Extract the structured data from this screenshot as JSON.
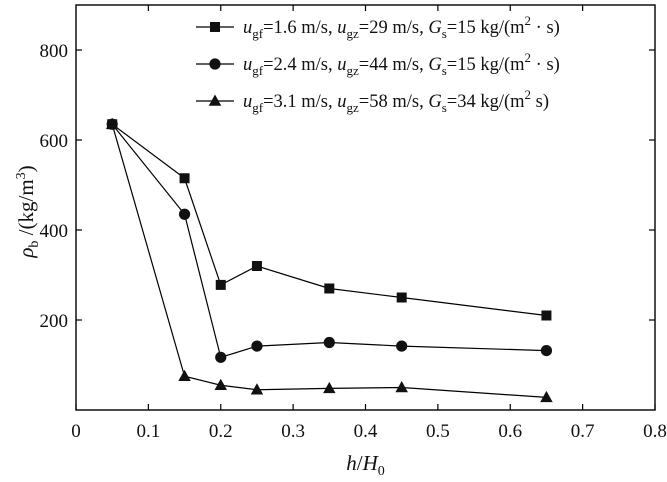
{
  "chart_data": {
    "type": "line",
    "xlabel_parts": {
      "italic": "h",
      "mid": "/",
      "italic2": "H",
      "sub": "0"
    },
    "ylabel_parts": {
      "greek": "ρ",
      "sub": "b",
      "tail": " /(kg/m",
      "sup": "3",
      "close": ")"
    },
    "xlim": [
      0,
      0.8
    ],
    "ylim": [
      0,
      900
    ],
    "xticks": [
      0,
      0.1,
      0.2,
      0.3,
      0.4,
      0.5,
      0.6,
      0.7,
      0.8
    ],
    "xtick_labels": [
      "0",
      "0.1",
      "0.2",
      "0.3",
      "0.4",
      "0.5",
      "0.6",
      "0.7",
      "0.8"
    ],
    "yticks": [
      200,
      400,
      600,
      800
    ],
    "ytick_labels": [
      "200",
      "400",
      "600",
      "800"
    ],
    "x": [
      0.05,
      0.15,
      0.2,
      0.25,
      0.35,
      0.45,
      0.65
    ],
    "legend_position": "top-right",
    "series": [
      {
        "marker": "square",
        "legend": {
          "ugf": "1.6",
          "ugz": "29",
          "gs": "15"
        },
        "values": [
          635,
          515,
          278,
          320,
          270,
          250,
          210
        ]
      },
      {
        "marker": "circle",
        "legend": {
          "ugf": "2.4",
          "ugz": "44",
          "gs": "15"
        },
        "values": [
          635,
          435,
          117,
          142,
          150,
          142,
          132
        ]
      },
      {
        "marker": "triangle",
        "legend": {
          "ugf": "3.1",
          "ugz": "58",
          "gs": "34"
        },
        "values": [
          635,
          75,
          55,
          45,
          48,
          50,
          28
        ]
      }
    ],
    "legend_text": {
      "u": "u",
      "sub_gf": "gf",
      "sub_gz": "gz",
      "g": "G",
      "sub_s": "s",
      "eq": "=",
      "unit_speed": " m/s, ",
      "unit_speed2": " m/s,  ",
      "unit_flux_open": " kg/(m",
      "unit_flux_sup": "2",
      "unit_flux_close_dot": " · s)",
      "unit_flux_close": " s)"
    }
  },
  "colors": {
    "axis": "#000000",
    "marker": "#111111",
    "background": "#ffffff"
  }
}
